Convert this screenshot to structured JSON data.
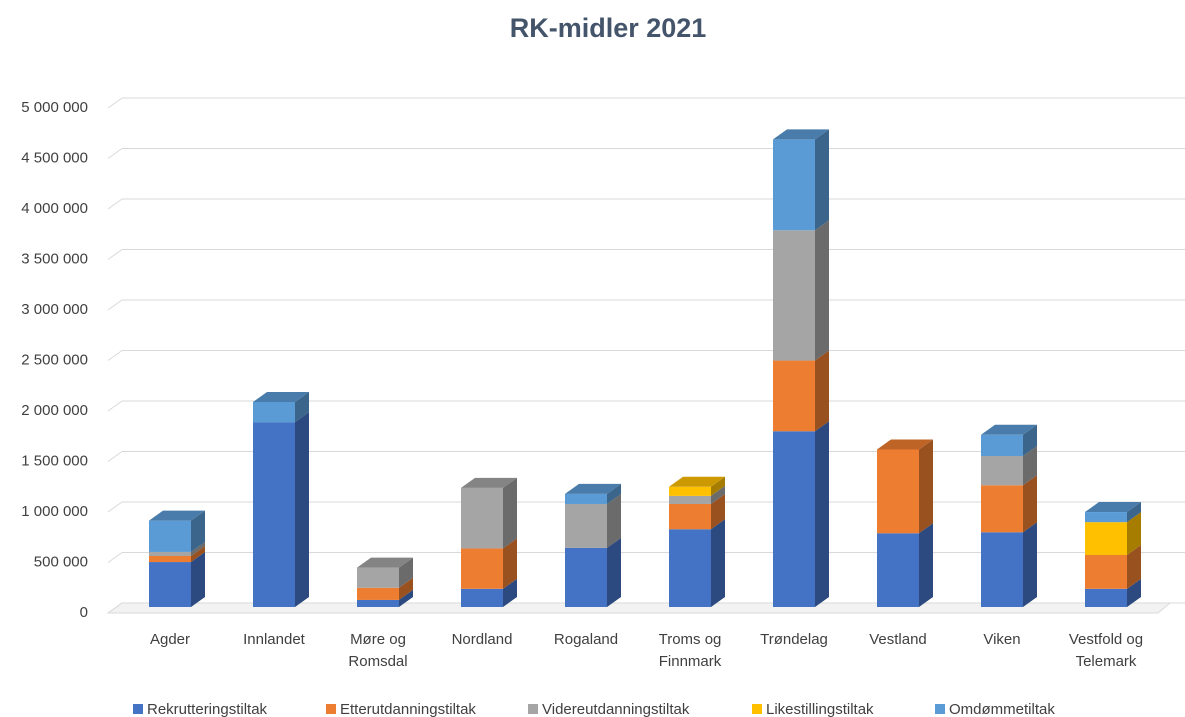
{
  "chart_data": {
    "type": "bar",
    "stacked": true,
    "title": "RK-midler 2021",
    "categories": [
      "Agder",
      "Innlandet",
      "Møre og\nRomsdal",
      "Nordland",
      "Rogaland",
      "Troms og\nFinnmark",
      "Trøndelag",
      "Vestland",
      "Viken",
      "Vestfold og\nTelemark"
    ],
    "series": [
      {
        "name": "Rekrutteringstiltak",
        "color": "#4472c4",
        "values": [
          445000,
          1830000,
          70000,
          180000,
          585000,
          770000,
          1740000,
          730000,
          740000,
          180000
        ]
      },
      {
        "name": "Etterutdanningstiltak",
        "color": "#ed7d31",
        "values": [
          60000,
          0,
          120000,
          400000,
          0,
          250000,
          700000,
          830000,
          465000,
          335000
        ]
      },
      {
        "name": "Videreutdanningstiltak",
        "color": "#a5a5a5",
        "values": [
          40000,
          0,
          200000,
          600000,
          435000,
          80000,
          1290000,
          0,
          290000,
          0
        ]
      },
      {
        "name": "Likestillingstiltak",
        "color": "#ffc000",
        "values": [
          0,
          0,
          0,
          0,
          0,
          90000,
          0,
          0,
          0,
          325000
        ]
      },
      {
        "name": "Omdømmetiltak",
        "color": "#5b9bd5",
        "values": [
          310000,
          200000,
          0,
          0,
          100000,
          0,
          900000,
          0,
          210000,
          100000
        ]
      }
    ],
    "ylim": [
      0,
      5000000
    ],
    "yticks": [
      0,
      {
        "value": 500000,
        "label": "500 000"
      },
      {
        "value": 1000000,
        "label": "1 000 000"
      },
      {
        "value": 1500000,
        "label": "1 500 000"
      },
      {
        "value": 2000000,
        "label": "2 000 000"
      },
      {
        "value": 2500000,
        "label": "2 500 000"
      },
      {
        "value": 3000000,
        "label": "3 000 000"
      },
      {
        "value": 3500000,
        "label": "3 500 000"
      },
      {
        "value": 4000000,
        "label": "4 000 000"
      },
      {
        "value": 4500000,
        "label": "4 500 000"
      },
      {
        "value": 5000000,
        "label": "5 000 000"
      }
    ],
    "grid": true,
    "legend": "bottom"
  }
}
